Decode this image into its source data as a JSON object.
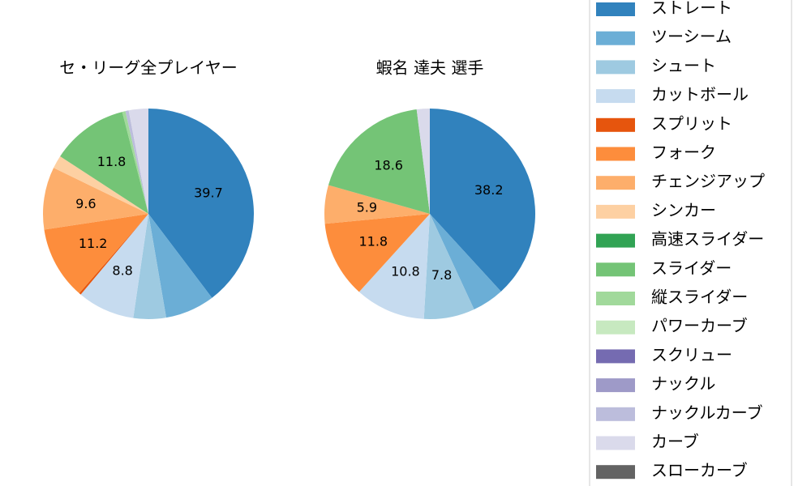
{
  "chart_data": [
    {
      "type": "pie",
      "title": "セ・リーグ全プレイヤー",
      "values": [
        39.7,
        7.6,
        5.0,
        8.8,
        0.3,
        11.2,
        9.6,
        2.0,
        0,
        11.8,
        0.5,
        0,
        0,
        0,
        0.5,
        3.0,
        0
      ],
      "value_labels": [
        "39.7",
        null,
        null,
        "8.8",
        null,
        "11.2",
        "9.6",
        null,
        null,
        "11.8",
        null,
        null,
        null,
        null,
        null,
        null,
        null
      ]
    },
    {
      "type": "pie",
      "title": "蝦名 達夫  選手",
      "values": [
        38.2,
        4.9,
        7.8,
        10.8,
        0,
        11.8,
        5.9,
        0,
        0,
        18.6,
        0,
        0,
        0,
        0,
        0,
        2.0,
        0
      ],
      "value_labels": [
        "38.2",
        null,
        "7.8",
        "10.8",
        null,
        "11.8",
        "5.9",
        null,
        null,
        "18.6",
        null,
        null,
        null,
        null,
        null,
        null,
        null
      ]
    }
  ],
  "legend": {
    "entries": [
      {
        "name": "ストレート",
        "color": "#3182bd"
      },
      {
        "name": "ツーシーム",
        "color": "#6baed6"
      },
      {
        "name": "シュート",
        "color": "#9ecae1"
      },
      {
        "name": "カットボール",
        "color": "#c6dbef"
      },
      {
        "name": "スプリット",
        "color": "#e6550d"
      },
      {
        "name": "フォーク",
        "color": "#fd8d3c"
      },
      {
        "name": "チェンジアップ",
        "color": "#fdae6b"
      },
      {
        "name": "シンカー",
        "color": "#fdd0a2"
      },
      {
        "name": "高速スライダー",
        "color": "#31a354"
      },
      {
        "name": "スライダー",
        "color": "#74c476"
      },
      {
        "name": "縦スライダー",
        "color": "#a1d99b"
      },
      {
        "name": "パワーカーブ",
        "color": "#c7e9c0"
      },
      {
        "name": "スクリュー",
        "color": "#756bb1"
      },
      {
        "name": "ナックル",
        "color": "#9e9ac8"
      },
      {
        "name": "ナックルカーブ",
        "color": "#bcbddc"
      },
      {
        "name": "カーブ",
        "color": "#dadaeb"
      },
      {
        "name": "スローカーブ",
        "color": "#636363"
      }
    ]
  }
}
